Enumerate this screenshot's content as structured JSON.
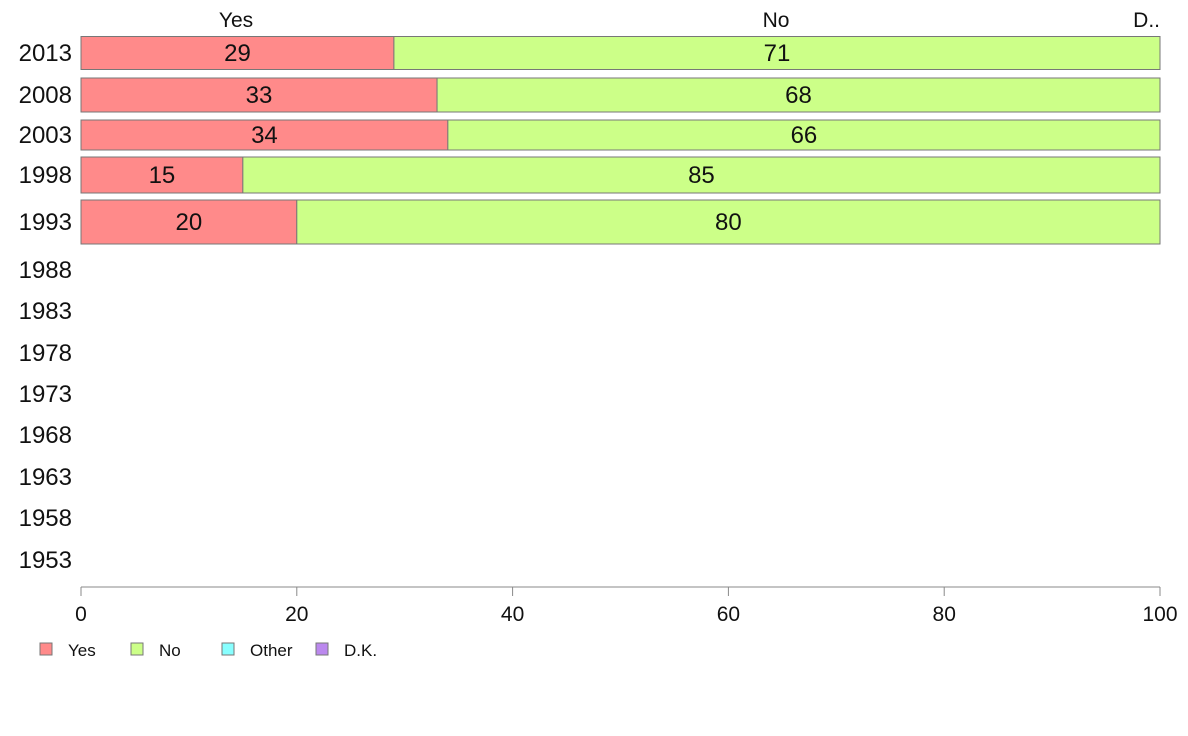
{
  "chart_data": {
    "type": "bar",
    "orientation": "horizontal",
    "stacked": true,
    "categories": [
      "2013",
      "2008",
      "2003",
      "1998",
      "1993",
      "1988",
      "1983",
      "1978",
      "1973",
      "1968",
      "1963",
      "1958",
      "1953"
    ],
    "series": [
      {
        "name": "Yes",
        "color": "#ff8a8a",
        "values": [
          29,
          33,
          34,
          15,
          20,
          null,
          null,
          null,
          null,
          null,
          null,
          null,
          null
        ]
      },
      {
        "name": "No",
        "color": "#ccff88",
        "values": [
          71,
          68,
          66,
          85,
          80,
          null,
          null,
          null,
          null,
          null,
          null,
          null,
          null
        ]
      },
      {
        "name": "Other",
        "color": "#88ffff",
        "values": [
          0,
          0,
          0,
          0,
          0,
          null,
          null,
          null,
          null,
          null,
          null,
          null,
          null
        ]
      },
      {
        "name": "D.K.",
        "color": "#bb88ee",
        "values": [
          0,
          0,
          0,
          0,
          0,
          null,
          null,
          null,
          null,
          null,
          null,
          null,
          null
        ]
      }
    ],
    "top_labels": [
      "Yes",
      "No",
      "D.."
    ],
    "xlim": [
      0,
      100
    ],
    "xticks": [
      0,
      20,
      40,
      60,
      80,
      100
    ],
    "grid": false,
    "legend_position": "bottom-left"
  }
}
